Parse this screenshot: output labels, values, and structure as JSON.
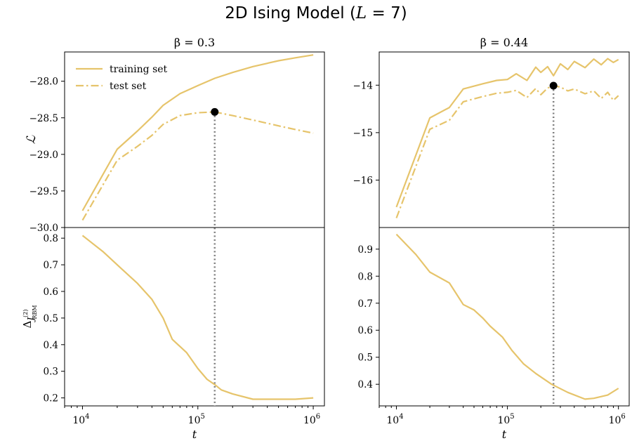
{
  "figure": {
    "title": "2D Ising Model (L = 7)",
    "title_parts": {
      "pre": "2D Ising Model (",
      "var": "L",
      "eq": " = 7)"
    }
  },
  "legend": {
    "training": "training set",
    "test": "test set",
    "placement": "upper-left"
  },
  "colors": {
    "series": "#e6c46b",
    "marker": "#000000",
    "vline": "#7f7f7f",
    "axis": "#000000"
  },
  "panels": [
    {
      "beta_label": "β = 0.3",
      "x_peak": 140000,
      "top": {
        "ylim": [
          -30.0,
          -27.6
        ],
        "yticks": [
          -30.0,
          -29.5,
          -29.0,
          -28.5,
          -28.0
        ],
        "ytick_labels": [
          "−30.0",
          "−29.5",
          "−29.0",
          "−28.5",
          "−28.0"
        ],
        "ylabel": "ℒ",
        "peak": {
          "x": 140000,
          "y": -28.42
        }
      },
      "bottom": {
        "ylim": [
          0.17,
          0.84
        ],
        "yticks": [
          0.2,
          0.3,
          0.4,
          0.5,
          0.6,
          0.7,
          0.8
        ],
        "ytick_labels": [
          "0.2",
          "0.3",
          "0.4",
          "0.5",
          "0.6",
          "0.7",
          "0.8"
        ],
        "ylabel": {
          "delta": "Δ",
          "j": "J",
          "sup": "(2)",
          "sub": "RBM"
        }
      },
      "xlabel": "t",
      "xticks": [
        {
          "value": 10000,
          "base": "10",
          "exp": "4"
        },
        {
          "value": 100000,
          "base": "10",
          "exp": "5"
        },
        {
          "value": 1000000,
          "base": "10",
          "exp": "6"
        }
      ]
    },
    {
      "beta_label": "β = 0.44",
      "x_peak": 260000,
      "top": {
        "ylim": [
          -17.0,
          -13.3
        ],
        "yticks": [
          -16,
          -15,
          -14
        ],
        "ytick_labels": [
          "−16",
          "−15",
          "−14"
        ],
        "ylabel": "",
        "peak": {
          "x": 260000,
          "y": -14.01
        }
      },
      "bottom": {
        "ylim": [
          0.32,
          0.98
        ],
        "yticks": [
          0.4,
          0.5,
          0.6,
          0.7,
          0.8,
          0.9
        ],
        "ytick_labels": [
          "0.4",
          "0.5",
          "0.6",
          "0.7",
          "0.8",
          "0.9"
        ],
        "ylabel": null
      },
      "xlabel": "t",
      "xticks": [
        {
          "value": 10000,
          "base": "10",
          "exp": "4"
        },
        {
          "value": 100000,
          "base": "10",
          "exp": "5"
        },
        {
          "value": 1000000,
          "base": "10",
          "exp": "6"
        }
      ]
    }
  ],
  "chart_data": [
    {
      "type": "line",
      "title": "β = 0.3",
      "xscale": "log",
      "xlim": [
        7000,
        1250000
      ],
      "ylim": [
        -30.0,
        -27.6
      ],
      "ylabel": "ℒ",
      "series": [
        {
          "name": "training set",
          "style": "solid",
          "x": [
            10000,
            20000,
            30000,
            40000,
            50000,
            70000,
            100000,
            140000,
            200000,
            300000,
            500000,
            700000,
            1000000
          ],
          "y": [
            -29.77,
            -28.93,
            -28.68,
            -28.49,
            -28.33,
            -28.17,
            -28.06,
            -27.96,
            -27.88,
            -27.8,
            -27.72,
            -27.68,
            -27.64
          ]
        },
        {
          "name": "test set",
          "style": "dashdot",
          "x": [
            10000,
            20000,
            30000,
            40000,
            50000,
            70000,
            100000,
            140000,
            200000,
            300000,
            500000,
            700000,
            1000000
          ],
          "y": [
            -29.9,
            -29.08,
            -28.89,
            -28.74,
            -28.59,
            -28.47,
            -28.43,
            -28.42,
            -28.47,
            -28.53,
            -28.61,
            -28.66,
            -28.71
          ]
        }
      ]
    },
    {
      "type": "line",
      "xscale": "log",
      "xlim": [
        7000,
        1250000
      ],
      "ylim": [
        0.17,
        0.84
      ],
      "xlabel": "t",
      "series": [
        {
          "style": "solid",
          "x": [
            10000,
            15000,
            20000,
            30000,
            40000,
            50000,
            60000,
            80000,
            100000,
            120000,
            140000,
            160000,
            200000,
            300000,
            400000,
            500000,
            700000,
            1000000
          ],
          "y": [
            0.81,
            0.75,
            0.7,
            0.63,
            0.57,
            0.5,
            0.42,
            0.37,
            0.31,
            0.27,
            0.25,
            0.23,
            0.215,
            0.195,
            0.195,
            0.195,
            0.195,
            0.2
          ]
        }
      ]
    },
    {
      "type": "line",
      "title": "β = 0.44",
      "xscale": "log",
      "xlim": [
        7000,
        1250000
      ],
      "ylim": [
        -17.0,
        -13.3
      ],
      "series": [
        {
          "name": "training set",
          "style": "solid",
          "x": [
            10000,
            20000,
            30000,
            40000,
            60000,
            80000,
            100000,
            120000,
            150000,
            180000,
            200000,
            230000,
            260000,
            300000,
            350000,
            400000,
            500000,
            600000,
            700000,
            800000,
            900000,
            1000000
          ],
          "y": [
            -16.57,
            -14.69,
            -14.47,
            -14.08,
            -13.97,
            -13.9,
            -13.88,
            -13.76,
            -13.9,
            -13.62,
            -13.73,
            -13.61,
            -13.8,
            -13.55,
            -13.67,
            -13.5,
            -13.63,
            -13.45,
            -13.57,
            -13.44,
            -13.52,
            -13.46
          ]
        },
        {
          "name": "test set",
          "style": "dashdot",
          "x": [
            10000,
            20000,
            30000,
            40000,
            60000,
            80000,
            100000,
            120000,
            150000,
            180000,
            200000,
            230000,
            260000,
            300000,
            350000,
            400000,
            500000,
            600000,
            700000,
            800000,
            900000,
            1000000
          ],
          "y": [
            -16.8,
            -14.93,
            -14.74,
            -14.35,
            -14.24,
            -14.17,
            -14.15,
            -14.11,
            -14.26,
            -14.07,
            -14.2,
            -14.06,
            -14.01,
            -14.04,
            -14.12,
            -14.08,
            -14.18,
            -14.12,
            -14.28,
            -14.15,
            -14.32,
            -14.22
          ]
        }
      ]
    },
    {
      "type": "line",
      "xscale": "log",
      "xlim": [
        7000,
        1250000
      ],
      "ylim": [
        0.32,
        0.98
      ],
      "xlabel": "t",
      "series": [
        {
          "style": "solid",
          "x": [
            10000,
            15000,
            20000,
            30000,
            40000,
            50000,
            60000,
            70000,
            90000,
            110000,
            140000,
            180000,
            250000,
            350000,
            500000,
            600000,
            800000,
            1000000
          ],
          "y": [
            0.955,
            0.88,
            0.815,
            0.775,
            0.695,
            0.675,
            0.645,
            0.615,
            0.575,
            0.525,
            0.475,
            0.44,
            0.4,
            0.37,
            0.345,
            0.348,
            0.36,
            0.385
          ]
        }
      ]
    }
  ]
}
